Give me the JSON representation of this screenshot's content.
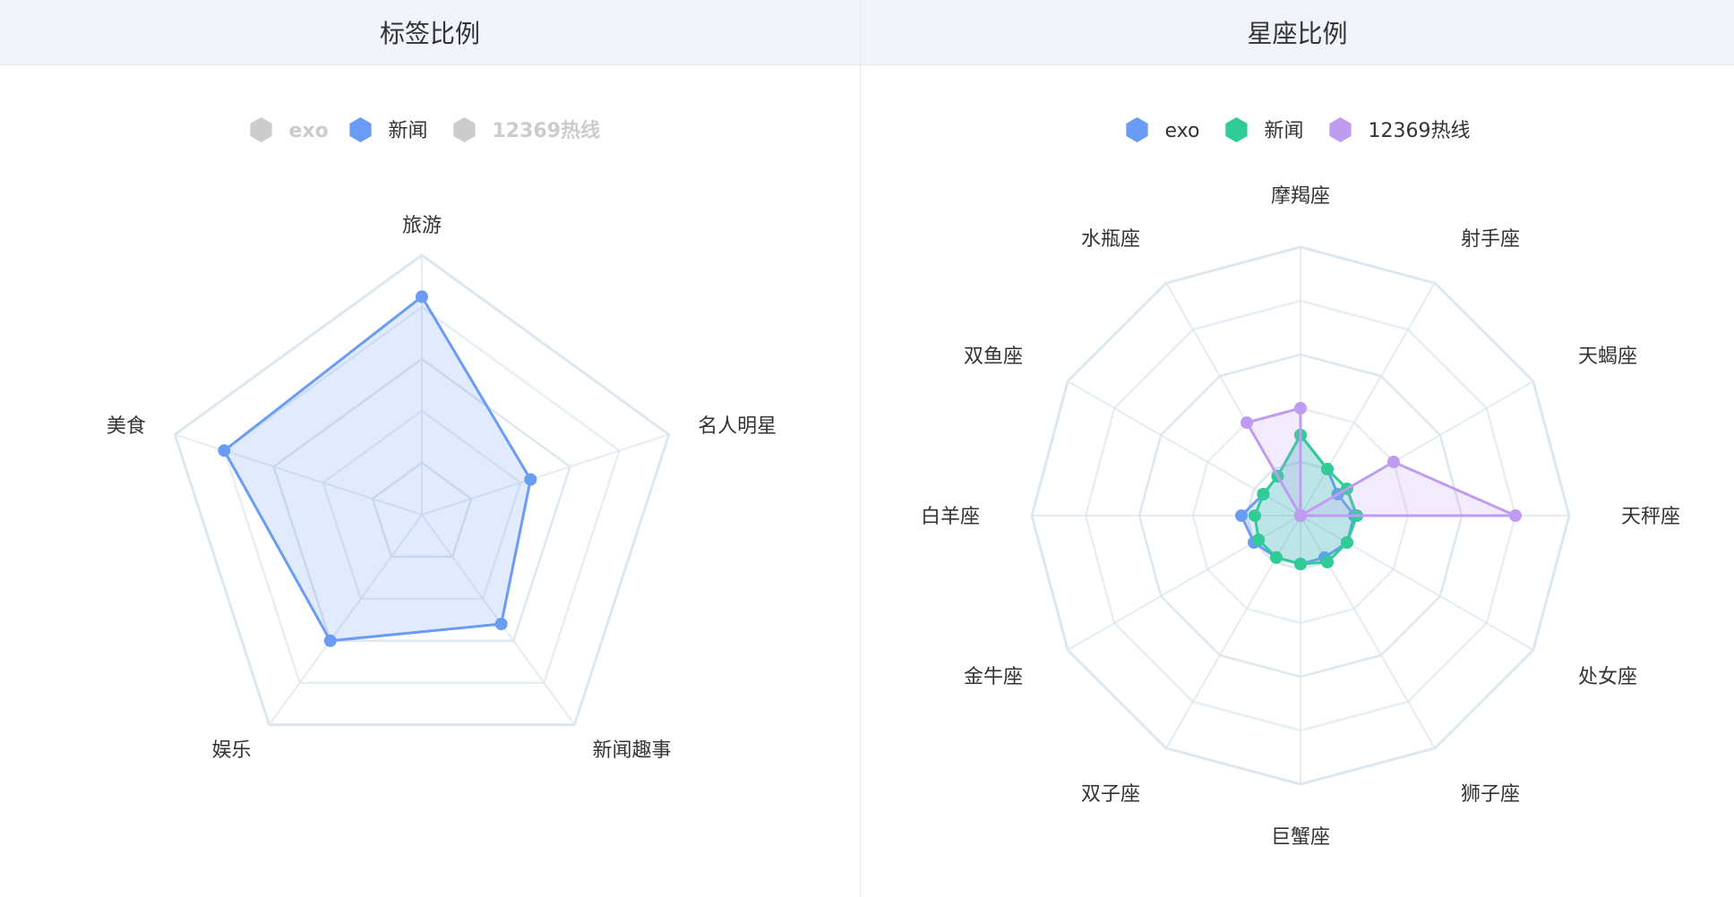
{
  "panels": {
    "left": {
      "title": "标签比例"
    },
    "right": {
      "title": "星座比例"
    }
  },
  "colors": {
    "inactive": "#cccccc",
    "grid": "#dde7f0"
  },
  "chart_data": [
    {
      "type": "radar",
      "title": "标签比例",
      "indicators": [
        "旅游",
        "名人明星",
        "新闻趣事",
        "娱乐",
        "美食"
      ],
      "rings": 5,
      "max": 100,
      "legend": {
        "position": "top-center",
        "items": [
          {
            "name": "exo",
            "color": "#6b9cf5",
            "active": false
          },
          {
            "name": "新闻",
            "color": "#6b9cf5",
            "active": true
          },
          {
            "name": "12369热线",
            "color": "#bf9cf0",
            "active": false
          }
        ]
      },
      "series": [
        {
          "name": "新闻",
          "color": "#6b9cf5",
          "values": [
            84,
            44,
            52,
            60,
            80
          ]
        }
      ]
    },
    {
      "type": "radar",
      "title": "星座比例",
      "indicators": [
        "摩羯座",
        "射手座",
        "天蝎座",
        "天秤座",
        "处女座",
        "狮子座",
        "巨蟹座",
        "双子座",
        "金牛座",
        "白羊座",
        "双鱼座",
        "水瓶座"
      ],
      "rings": 5,
      "max": 100,
      "legend": {
        "position": "top-center",
        "items": [
          {
            "name": "exo",
            "color": "#6b9cf5",
            "active": true
          },
          {
            "name": "新闻",
            "color": "#2fcc98",
            "active": true
          },
          {
            "name": "12369热线",
            "color": "#bf9cf0",
            "active": true
          }
        ]
      },
      "series": [
        {
          "name": "exo",
          "color": "#6b9cf5",
          "values": [
            30,
            20,
            16,
            20,
            20,
            18,
            18,
            18,
            20,
            22,
            16,
            17
          ]
        },
        {
          "name": "新闻",
          "color": "#2fcc98",
          "values": [
            30,
            20,
            20,
            21,
            20,
            20,
            18,
            18,
            18,
            17,
            16,
            17
          ]
        },
        {
          "name": "12369热线",
          "color": "#bf9cf0",
          "values": [
            40,
            0,
            40,
            80,
            0,
            0,
            0,
            0,
            0,
            0,
            0,
            40
          ]
        }
      ]
    }
  ]
}
